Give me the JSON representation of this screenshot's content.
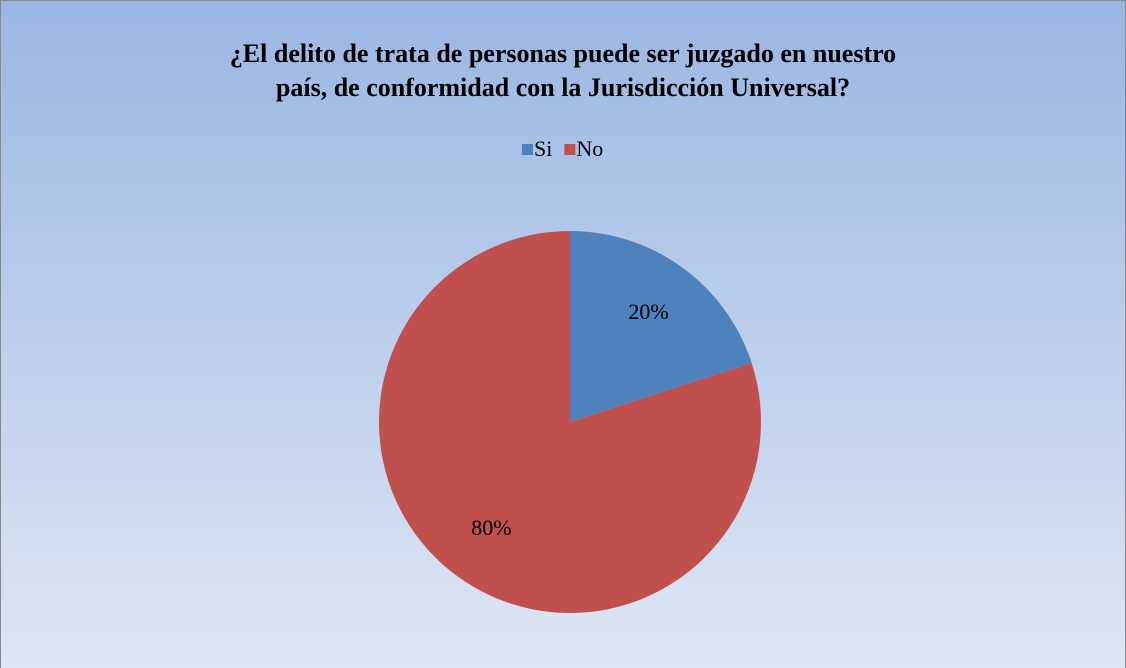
{
  "chart_data": {
    "type": "pie",
    "title": [
      "¿El delito de trata de personas  puede ser juzgado en nuestro",
      "país,  de conformidad con la Jurisdicción Universal?"
    ],
    "categories": [
      "Si",
      "No"
    ],
    "values": [
      20,
      80
    ],
    "value_labels": [
      "20%",
      "80%"
    ],
    "colors": [
      "#4f81bd",
      "#c0504d"
    ],
    "legend": "top"
  }
}
